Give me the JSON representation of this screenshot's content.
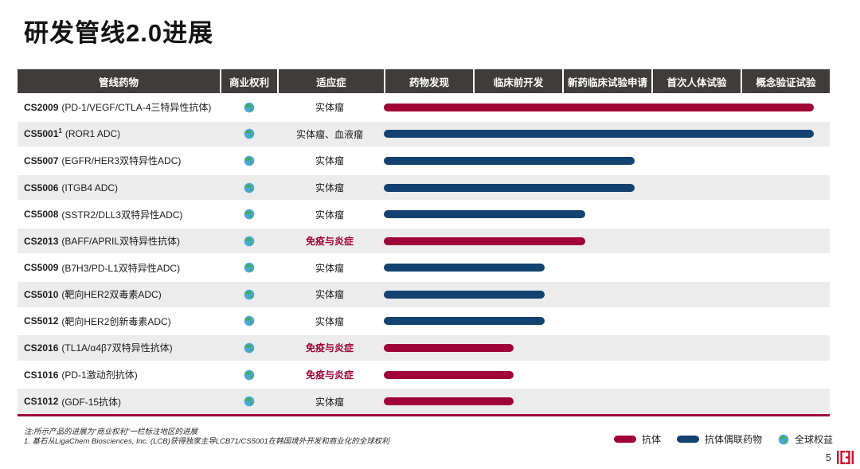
{
  "page": {
    "title": "研发管线2.0进展",
    "page_number": "5"
  },
  "table": {
    "headers": [
      "管线药物",
      "商业权利",
      "适应症",
      "药物发现",
      "临床前开发",
      "新药临床试验申请",
      "首次人体试验",
      "概念验证试验"
    ],
    "rows": [
      {
        "code": "CS2009",
        "sup": "",
        "desc": "(PD-1/VEGF/CTLA-4三特异性抗体)",
        "rights": "全球权益",
        "indication": "实体瘤",
        "category": "oncology",
        "modality": "antibody",
        "progress_pct": 96
      },
      {
        "code": "CS5001",
        "sup": "1",
        "desc": "(ROR1 ADC)",
        "rights": "全球权益",
        "indication": "实体瘤、血液瘤",
        "category": "oncology",
        "modality": "adc",
        "progress_pct": 96
      },
      {
        "code": "CS5007",
        "sup": "",
        "desc": "(EGFR/HER3双特异性ADC)",
        "rights": "全球权益",
        "indication": "实体瘤",
        "category": "oncology",
        "modality": "adc",
        "progress_pct": 56
      },
      {
        "code": "CS5006",
        "sup": "",
        "desc": "(ITGB4 ADC)",
        "rights": "全球权益",
        "indication": "实体瘤",
        "category": "oncology",
        "modality": "adc",
        "progress_pct": 56
      },
      {
        "code": "CS5008",
        "sup": "",
        "desc": "(SSTR2/DLL3双特异性ADC)",
        "rights": "全球权益",
        "indication": "实体瘤",
        "category": "oncology",
        "modality": "adc",
        "progress_pct": 45
      },
      {
        "code": "CS2013",
        "sup": "",
        "desc": "(BAFF/APRIL双特异性抗体)",
        "rights": "全球权益",
        "indication": "免疫与炎症",
        "category": "immunology",
        "modality": "antibody",
        "progress_pct": 45
      },
      {
        "code": "CS5009",
        "sup": "",
        "desc": "(B7H3/PD-L1双特异性ADC)",
        "rights": "全球权益",
        "indication": "实体瘤",
        "category": "oncology",
        "modality": "adc",
        "progress_pct": 36
      },
      {
        "code": "CS5010",
        "sup": "",
        "desc": "(靶向HER2双毒素ADC)",
        "rights": "全球权益",
        "indication": "实体瘤",
        "category": "oncology",
        "modality": "adc",
        "progress_pct": 36
      },
      {
        "code": "CS5012",
        "sup": "",
        "desc": "(靶向HER2创新毒素ADC)",
        "rights": "全球权益",
        "indication": "实体瘤",
        "category": "oncology",
        "modality": "adc",
        "progress_pct": 36
      },
      {
        "code": "CS2016",
        "sup": "",
        "desc": "(TL1A/α4β7双特异性抗体)",
        "rights": "全球权益",
        "indication": "免疫与炎症",
        "category": "immunology",
        "modality": "antibody",
        "progress_pct": 29
      },
      {
        "code": "CS1016",
        "sup": "",
        "desc": "(PD-1激动剂抗体)",
        "rights": "全球权益",
        "indication": "免疫与炎症",
        "category": "immunology",
        "modality": "antibody",
        "progress_pct": 29
      },
      {
        "code": "CS1012",
        "sup": "",
        "desc": "(GDF-15抗体)",
        "rights": "全球权益",
        "indication": "实体瘤",
        "category": "oncology",
        "modality": "antibody",
        "progress_pct": 29
      }
    ]
  },
  "legend": {
    "antibody": "抗体",
    "adc": "抗体偶联药物",
    "global": "全球权益"
  },
  "notes": [
    "注:所示产品的进展为“商业权利”一栏标注地区的进展",
    "1. 基石从LigaChem Biosciences, Inc. (LCB)获得独家主导LCB71/CS5001在韩国境外开发和商业化的全球权利"
  ],
  "colors": {
    "antibody": "#A00337",
    "adc": "#134271",
    "header_bg": "#403C3C",
    "row_alt": "#ECECEC",
    "immunology_text": "#A00337",
    "globe_blue": "#4BA7D9",
    "globe_green": "#3FAE4C"
  },
  "chart_data": {
    "type": "bar",
    "title": "研发管线2.0进展",
    "stages": [
      "药物发现",
      "临床前开发",
      "新药临床试验申请",
      "首次人体试验",
      "概念验证试验"
    ],
    "stage_axis_pct": [
      [
        0,
        20
      ],
      [
        20,
        40
      ],
      [
        40,
        60
      ],
      [
        60,
        80
      ],
      [
        80,
        100
      ]
    ],
    "xlim": [
      0,
      100
    ],
    "grid": false,
    "legend_position": "bottom-right",
    "legend_entries": [
      "抗体",
      "抗体偶联药物",
      "全球权益"
    ],
    "series": [
      {
        "name": "CS2009 (PD-1/VEGF/CTLA-4三特异性抗体)",
        "modality": "抗体",
        "indication": "实体瘤",
        "rights": "全球权益",
        "progress_pct": 96
      },
      {
        "name": "CS5001¹ (ROR1 ADC)",
        "modality": "抗体偶联药物",
        "indication": "实体瘤、血液瘤",
        "rights": "全球权益",
        "progress_pct": 96
      },
      {
        "name": "CS5007 (EGFR/HER3双特异性ADC)",
        "modality": "抗体偶联药物",
        "indication": "实体瘤",
        "rights": "全球权益",
        "progress_pct": 56
      },
      {
        "name": "CS5006 (ITGB4 ADC)",
        "modality": "抗体偶联药物",
        "indication": "实体瘤",
        "rights": "全球权益",
        "progress_pct": 56
      },
      {
        "name": "CS5008 (SSTR2/DLL3双特异性ADC)",
        "modality": "抗体偶联药物",
        "indication": "实体瘤",
        "rights": "全球权益",
        "progress_pct": 45
      },
      {
        "name": "CS2013 (BAFF/APRIL双特异性抗体)",
        "modality": "抗体",
        "indication": "免疫与炎症",
        "rights": "全球权益",
        "progress_pct": 45
      },
      {
        "name": "CS5009 (B7H3/PD-L1双特异性ADC)",
        "modality": "抗体偶联药物",
        "indication": "实体瘤",
        "rights": "全球权益",
        "progress_pct": 36
      },
      {
        "name": "CS5010 (靶向HER2双毒素ADC)",
        "modality": "抗体偶联药物",
        "indication": "实体瘤",
        "rights": "全球权益",
        "progress_pct": 36
      },
      {
        "name": "CS5012 (靶向HER2创新毒素ADC)",
        "modality": "抗体偶联药物",
        "indication": "实体瘤",
        "rights": "全球权益",
        "progress_pct": 36
      },
      {
        "name": "CS2016 (TL1A/α4β7双特异性抗体)",
        "modality": "抗体",
        "indication": "免疫与炎症",
        "rights": "全球权益",
        "progress_pct": 29
      },
      {
        "name": "CS1016 (PD-1激动剂抗体)",
        "modality": "抗体",
        "indication": "免疫与炎症",
        "rights": "全球权益",
        "progress_pct": 29
      },
      {
        "name": "CS1012 (GDF-15抗体)",
        "modality": "抗体",
        "indication": "实体瘤",
        "rights": "全球权益",
        "progress_pct": 29
      }
    ]
  }
}
